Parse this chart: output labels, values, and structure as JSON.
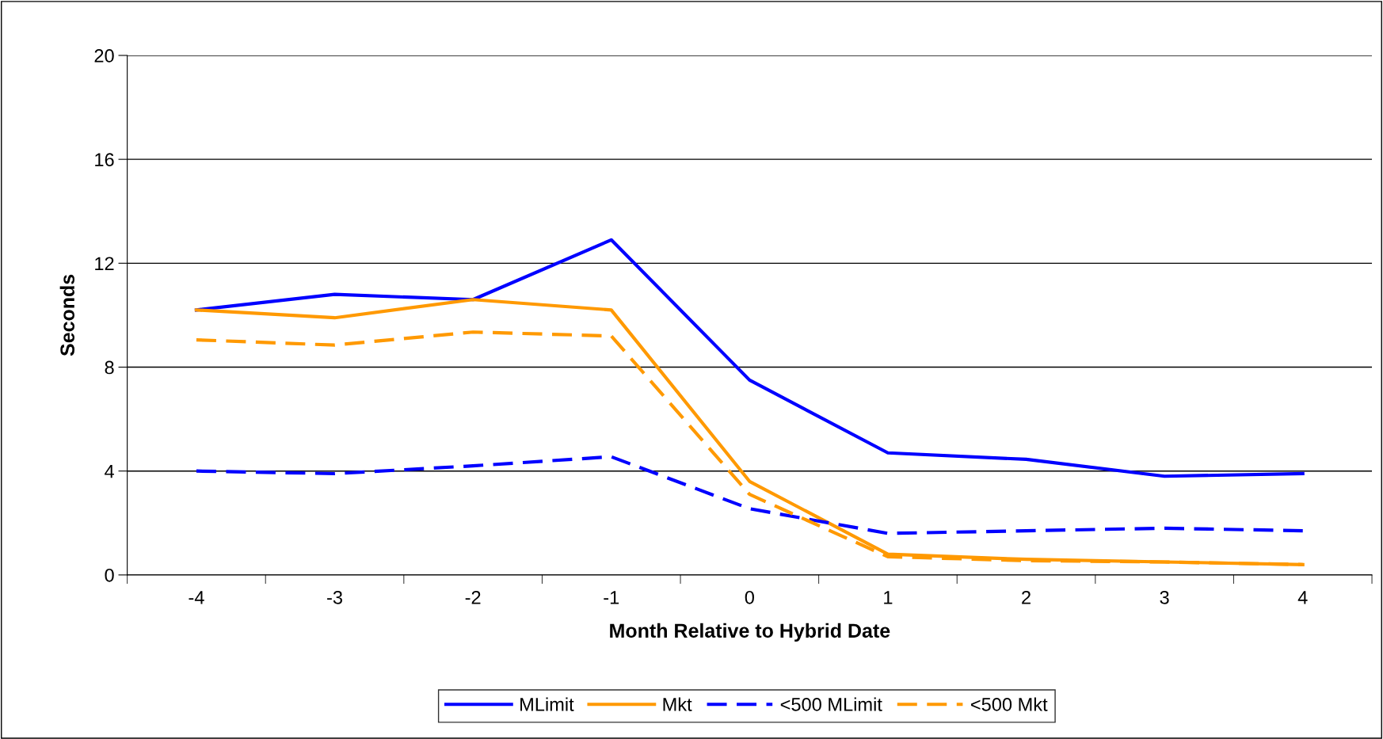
{
  "chart_data": {
    "type": "line",
    "xlabel": "Month Relative to Hybrid Date",
    "ylabel": "Seconds",
    "categories": [
      "-4",
      "-3",
      "-2",
      "-1",
      "0",
      "1",
      "2",
      "3",
      "4"
    ],
    "ylim": [
      0,
      20
    ],
    "yticks": [
      0,
      4,
      8,
      12,
      16,
      20
    ],
    "grid": "y",
    "legend": "bottom",
    "marker": "none",
    "series": [
      {
        "name": "MLimit",
        "color": "#0000ff",
        "line_style": "solid",
        "values": [
          10.2,
          10.8,
          10.6,
          12.9,
          7.5,
          4.7,
          4.45,
          3.8,
          3.9
        ]
      },
      {
        "name": "Mkt",
        "color": "#ff9900",
        "line_style": "solid",
        "values": [
          10.2,
          9.9,
          10.6,
          10.2,
          3.6,
          0.8,
          0.6,
          0.5,
          0.4
        ]
      },
      {
        "name": "<500 MLimit",
        "color": "#0000ff",
        "line_style": "dashed",
        "values": [
          4.0,
          3.9,
          4.2,
          4.55,
          2.55,
          1.6,
          1.7,
          1.8,
          1.7
        ]
      },
      {
        "name": "<500 Mkt",
        "color": "#ff9900",
        "line_style": "dashed",
        "values": [
          9.05,
          8.85,
          9.35,
          9.2,
          3.1,
          0.7,
          0.55,
          0.5,
          0.4
        ]
      }
    ]
  }
}
